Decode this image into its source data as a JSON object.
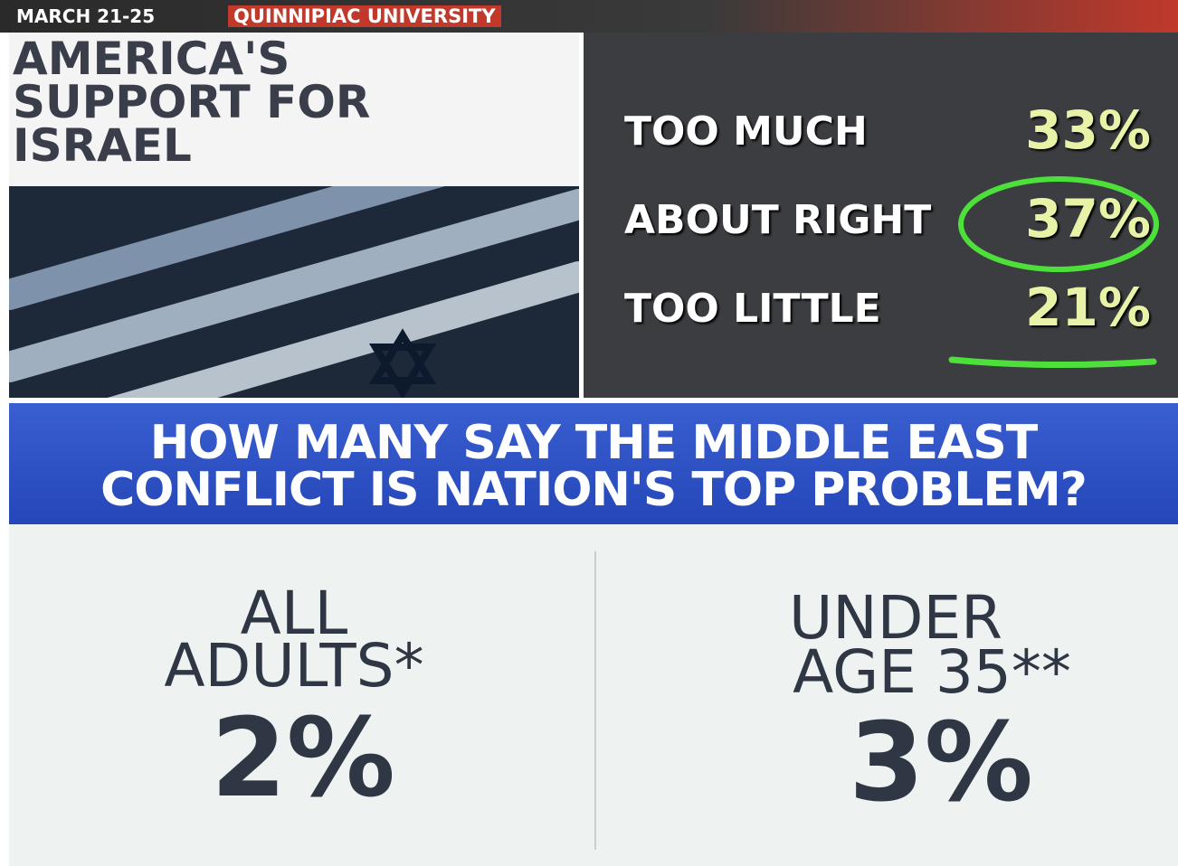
{
  "header": {
    "date": "MARCH 21-25",
    "source": "QUINNIPIAC UNIVERSITY"
  },
  "top_panel": {
    "title_lines": [
      "AMERICA'S",
      "SUPPORT FOR",
      "ISRAEL"
    ],
    "rows": [
      {
        "label": "TOO MUCH",
        "value": "33%"
      },
      {
        "label": "ABOUT RIGHT",
        "value": "37%"
      },
      {
        "label": "TOO LITTLE",
        "value": "21%"
      }
    ]
  },
  "bottom_panel": {
    "question_lines": [
      "HOW MANY SAY THE MIDDLE EAST",
      "CONFLICT IS NATION'S TOP PROBLEM?"
    ],
    "groups": [
      {
        "label_lines": [
          "ALL",
          "ADULTS*"
        ],
        "value": "2%"
      },
      {
        "label_lines": [
          "UNDER",
          "AGE 35**"
        ],
        "value": "3%"
      }
    ]
  }
}
